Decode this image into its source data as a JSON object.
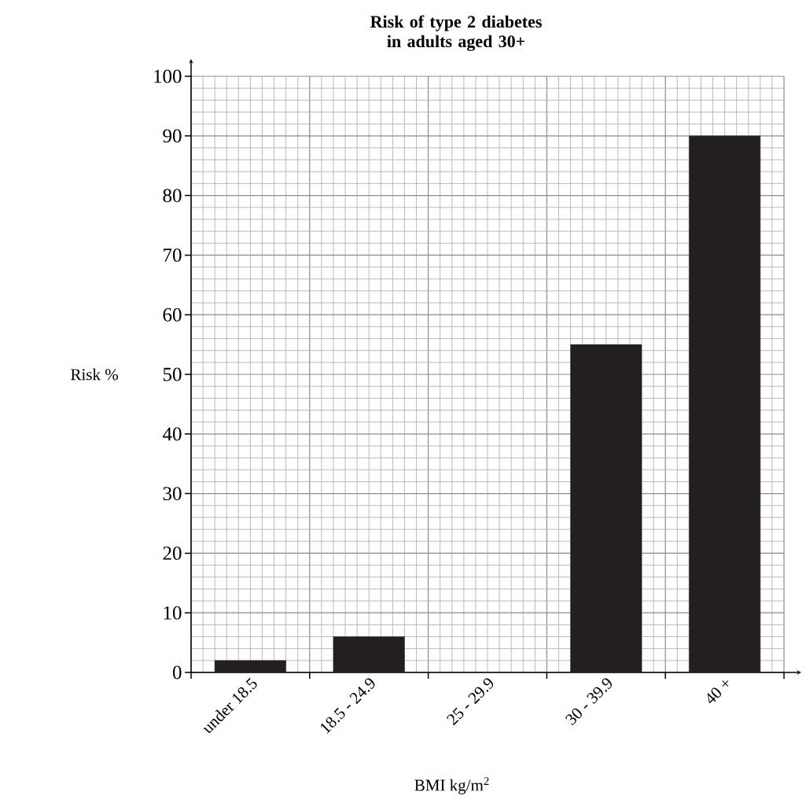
{
  "chart_data": {
    "type": "bar",
    "title": "Risk of type 2 diabetes in adults aged 30+",
    "xlabel": "BMI kg/m$^{2}$",
    "ylabel": "Risk %",
    "categories": [
      "under 18.5",
      "18.5 - 24.9",
      "25 - 29.9",
      "30 - 39.9",
      "40 +"
    ],
    "values": [
      2,
      6,
      null,
      55,
      90
    ],
    "color": "#231f20",
    "ylim": [
      0,
      100
    ],
    "yticks": [
      0,
      10,
      20,
      30,
      40,
      50,
      60,
      70,
      80,
      90,
      100
    ],
    "grid": true
  }
}
